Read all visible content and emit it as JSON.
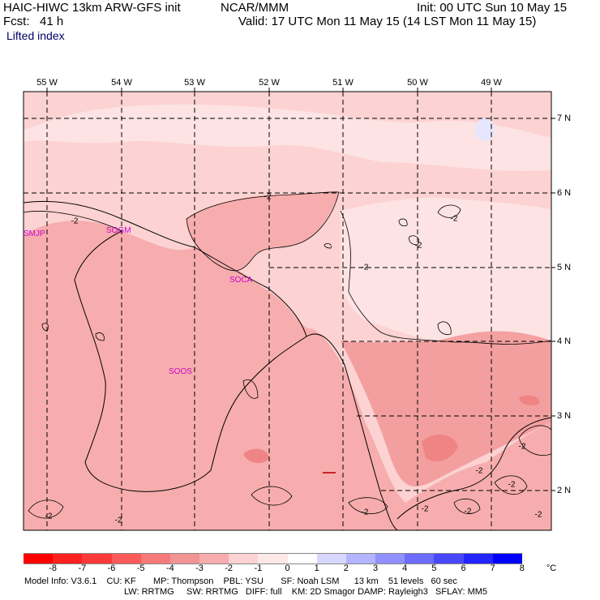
{
  "header": {
    "model": "HAIC-HIWC 13km ARW-GFS init",
    "org": "NCAR/MMM",
    "init": "Init: 00 UTC Sun 10 May 15",
    "fcst": "Fcst:   41 h",
    "valid": "Valid: 17 UTC Mon 11 May 15 (14 LST Mon 11 May 15)",
    "field": "Lifted index"
  },
  "lon_labels": [
    "55 W",
    "54 W",
    "53 W",
    "52 W",
    "51 W",
    "50 W",
    "49 W"
  ],
  "lat_labels": [
    "7 N",
    "6 N",
    "5 N",
    "4 N",
    "3 N",
    "2 N"
  ],
  "stations": [
    "SMJP",
    "SOGM",
    "SOCA",
    "SOOS"
  ],
  "contour_labels": [
    "-2",
    "-2",
    "-2",
    "-2",
    "-2",
    "-2",
    "-2",
    "-2",
    "-2",
    "-2",
    "-2",
    "-2",
    "-2",
    "-2"
  ],
  "legend": {
    "labels": [
      "-8",
      "-7",
      "-6",
      "-5",
      "-4",
      "-3",
      "-2",
      "-1",
      "0",
      "1",
      "2",
      "3",
      "4",
      "5",
      "6",
      "7",
      "8"
    ],
    "unit": "°C",
    "colors": [
      "#ff0000",
      "#ff2020",
      "#ff3a3a",
      "#ff5a5a",
      "#f67a7a",
      "#f29494",
      "#f7adad",
      "#fcd2d2",
      "#fde8e8",
      "#ffffff",
      "#d8d8ff",
      "#b4b4ff",
      "#9090ff",
      "#6c6cff",
      "#4848ff",
      "#2424ff",
      "#0000ff"
    ]
  },
  "fill_colors": {
    "ocean_light": "#fcd2d2",
    "ocean_lighter": "#fde3e3",
    "land": "#f7adad",
    "land_mid": "#f29999",
    "land_dark": "#ee8484",
    "blue_spot": "#e6e6ff"
  },
  "footer": {
    "line1": "Model Info: V3.6.1    CU: KF       MP: Thompson    PBL: YSU       SF: Noah LSM      13 km    51 levels   60 sec",
    "line2": "LW: RRTMG     SW: RRTMG   DIFF: full    KM: 2D Smagor DAMP: Rayleigh3   SFLAY: MM5"
  }
}
